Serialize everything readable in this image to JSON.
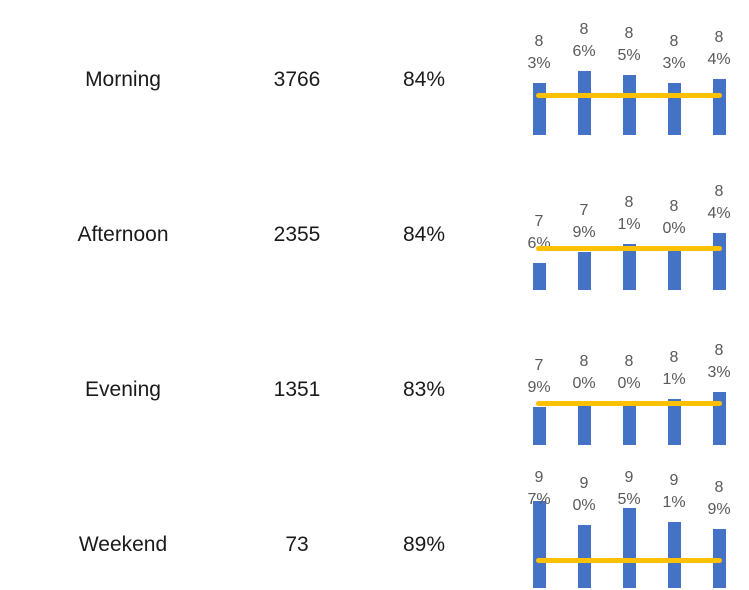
{
  "rows": [
    {
      "label": "Morning",
      "count": 3766,
      "percent": "84%",
      "chart": {
        "type": "bar",
        "values": [
          83,
          86,
          85,
          83,
          84
        ],
        "value_labels": [
          "83%",
          "86%",
          "85%",
          "83%",
          "84%"
        ],
        "ylim": [
          70,
          90
        ],
        "target": 80,
        "color": "#4472c4",
        "target_color": "#ffc000"
      }
    },
    {
      "label": "Afternoon",
      "count": 2355,
      "percent": "84%",
      "chart": {
        "type": "bar",
        "values": [
          76,
          79,
          81,
          80,
          84
        ],
        "value_labels": [
          "76%",
          "79%",
          "81%",
          "80%",
          "84%"
        ],
        "ylim": [
          69,
          90
        ],
        "target": 80,
        "color": "#4472c4",
        "target_color": "#ffc000"
      }
    },
    {
      "label": "Evening",
      "count": 1351,
      "percent": "83%",
      "chart": {
        "type": "bar",
        "values": [
          79,
          80,
          80,
          81,
          83
        ],
        "value_labels": [
          "79%",
          "80%",
          "80%",
          "81%",
          "83%"
        ],
        "ylim": [
          69,
          90
        ],
        "target": 80,
        "color": "#4472c4",
        "target_color": "#ffc000"
      }
    },
    {
      "label": "Weekend",
      "count": 73,
      "percent": "89%",
      "chart": {
        "type": "bar",
        "values": [
          97,
          90,
          95,
          91,
          89
        ],
        "value_labels": [
          "97%",
          "90%",
          "95%",
          "91%",
          "89%"
        ],
        "ylim": [
          72,
          95
        ],
        "target": 80,
        "color": "#4472c4",
        "target_color": "#ffc000"
      }
    }
  ]
}
